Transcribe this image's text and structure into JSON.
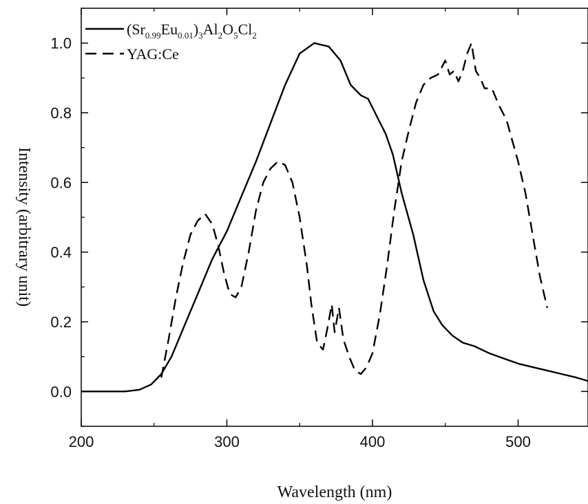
{
  "chart_data": {
    "type": "line",
    "xlabel": "Wavelength (nm)",
    "ylabel": "Intensity (arbitrary unit)",
    "xlim": [
      200,
      548
    ],
    "ylim": [
      -0.1,
      1.1
    ],
    "x_ticks": [
      200,
      300,
      400,
      500
    ],
    "y_ticks": [
      0.0,
      0.2,
      0.4,
      0.6,
      0.8,
      1.0
    ],
    "x_tick_labels": [
      "200",
      "300",
      "400",
      "500"
    ],
    "y_tick_labels": [
      "0.0",
      "0.2",
      "0.4",
      "0.6",
      "0.8",
      "1.0"
    ],
    "grid": false,
    "legend_position": "top-left",
    "series": [
      {
        "name": "(Sr0.99Eu0.01)3Al2O5Cl2",
        "name_parts": [
          {
            "text": "(Sr",
            "sub": false
          },
          {
            "text": "0.99",
            "sub": true
          },
          {
            "text": "Eu",
            "sub": false
          },
          {
            "text": "0.01",
            "sub": true
          },
          {
            "text": ")",
            "sub": false
          },
          {
            "text": "3",
            "sub": true
          },
          {
            "text": "Al",
            "sub": false
          },
          {
            "text": "2",
            "sub": true
          },
          {
            "text": "O",
            "sub": false
          },
          {
            "text": "5",
            "sub": true
          },
          {
            "text": "Cl",
            "sub": false
          },
          {
            "text": "2",
            "sub": true
          }
        ],
        "style": "solid",
        "color": "#000000",
        "points": [
          [
            200,
            0.0
          ],
          [
            230,
            0.0
          ],
          [
            240,
            0.005
          ],
          [
            248,
            0.02
          ],
          [
            255,
            0.05
          ],
          [
            262,
            0.1
          ],
          [
            270,
            0.18
          ],
          [
            280,
            0.28
          ],
          [
            290,
            0.38
          ],
          [
            300,
            0.46
          ],
          [
            310,
            0.56
          ],
          [
            320,
            0.66
          ],
          [
            330,
            0.77
          ],
          [
            340,
            0.88
          ],
          [
            350,
            0.97
          ],
          [
            360,
            1.0
          ],
          [
            370,
            0.99
          ],
          [
            378,
            0.95
          ],
          [
            385,
            0.88
          ],
          [
            392,
            0.85
          ],
          [
            397,
            0.84
          ],
          [
            403,
            0.79
          ],
          [
            409,
            0.74
          ],
          [
            414,
            0.68
          ],
          [
            420,
            0.57
          ],
          [
            428,
            0.45
          ],
          [
            435,
            0.32
          ],
          [
            442,
            0.23
          ],
          [
            448,
            0.19
          ],
          [
            455,
            0.16
          ],
          [
            462,
            0.14
          ],
          [
            470,
            0.13
          ],
          [
            480,
            0.11
          ],
          [
            490,
            0.095
          ],
          [
            500,
            0.08
          ],
          [
            510,
            0.07
          ],
          [
            520,
            0.06
          ],
          [
            530,
            0.05
          ],
          [
            540,
            0.04
          ],
          [
            548,
            0.03
          ]
        ]
      },
      {
        "name": "YAG:Ce",
        "style": "dashed",
        "color": "#000000",
        "points": [
          [
            255,
            0.04
          ],
          [
            260,
            0.15
          ],
          [
            265,
            0.27
          ],
          [
            270,
            0.37
          ],
          [
            275,
            0.45
          ],
          [
            280,
            0.49
          ],
          [
            285,
            0.51
          ],
          [
            290,
            0.48
          ],
          [
            294,
            0.42
          ],
          [
            298,
            0.34
          ],
          [
            302,
            0.28
          ],
          [
            306,
            0.27
          ],
          [
            310,
            0.3
          ],
          [
            315,
            0.4
          ],
          [
            320,
            0.52
          ],
          [
            325,
            0.6
          ],
          [
            330,
            0.64
          ],
          [
            335,
            0.66
          ],
          [
            340,
            0.65
          ],
          [
            345,
            0.6
          ],
          [
            350,
            0.5
          ],
          [
            355,
            0.36
          ],
          [
            358,
            0.25
          ],
          [
            362,
            0.14
          ],
          [
            366,
            0.12
          ],
          [
            369,
            0.18
          ],
          [
            372,
            0.25
          ],
          [
            374,
            0.17
          ],
          [
            377,
            0.24
          ],
          [
            380,
            0.15
          ],
          [
            384,
            0.1
          ],
          [
            388,
            0.06
          ],
          [
            392,
            0.05
          ],
          [
            396,
            0.07
          ],
          [
            400,
            0.11
          ],
          [
            405,
            0.22
          ],
          [
            410,
            0.36
          ],
          [
            415,
            0.52
          ],
          [
            420,
            0.66
          ],
          [
            425,
            0.75
          ],
          [
            430,
            0.83
          ],
          [
            435,
            0.88
          ],
          [
            440,
            0.9
          ],
          [
            445,
            0.91
          ],
          [
            450,
            0.95
          ],
          [
            453,
            0.91
          ],
          [
            456,
            0.92
          ],
          [
            459,
            0.89
          ],
          [
            462,
            0.92
          ],
          [
            465,
            0.97
          ],
          [
            468,
            1.0
          ],
          [
            471,
            0.92
          ],
          [
            474,
            0.9
          ],
          [
            477,
            0.87
          ],
          [
            482,
            0.87
          ],
          [
            487,
            0.82
          ],
          [
            492,
            0.78
          ],
          [
            496,
            0.72
          ],
          [
            500,
            0.66
          ],
          [
            505,
            0.57
          ],
          [
            510,
            0.45
          ],
          [
            515,
            0.33
          ],
          [
            520,
            0.24
          ]
        ]
      }
    ]
  }
}
